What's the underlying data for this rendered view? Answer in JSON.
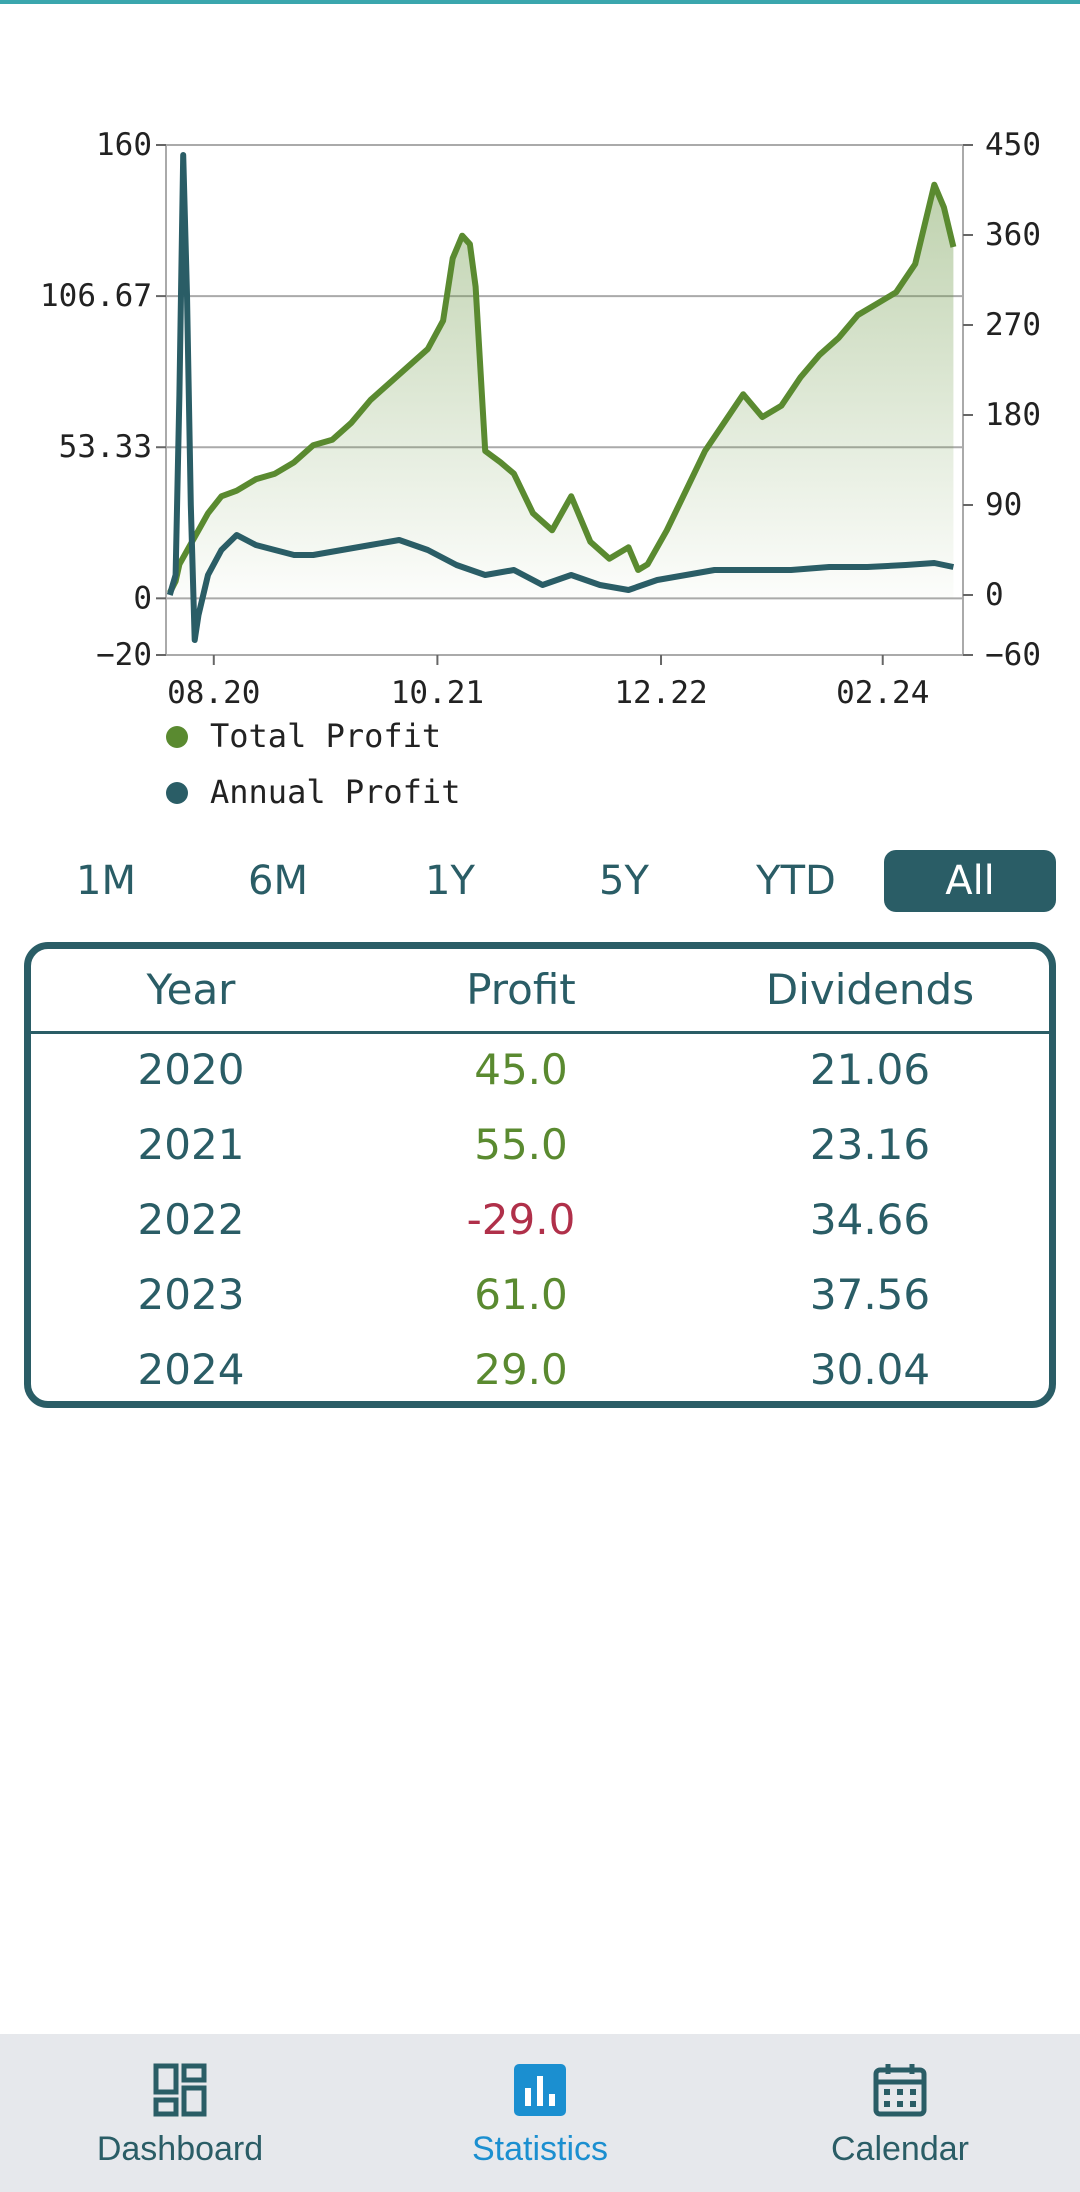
{
  "chart_data": {
    "type": "line",
    "series": [
      {
        "name": "Total Profit",
        "color": "#5a8a30",
        "axis": "left",
        "x": [
          2020.35,
          2020.38,
          2020.4,
          2020.45,
          2020.5,
          2020.55,
          2020.62,
          2020.7,
          2020.8,
          2020.9,
          2021.0,
          2021.1,
          2021.2,
          2021.3,
          2021.4,
          2021.5,
          2021.6,
          2021.7,
          2021.78,
          2021.83,
          2021.88,
          2021.92,
          2021.95,
          2022.0,
          2022.08,
          2022.15,
          2022.25,
          2022.35,
          2022.45,
          2022.55,
          2022.65,
          2022.75,
          2022.8,
          2022.85,
          2022.95,
          2023.05,
          2023.15,
          2023.25,
          2023.35,
          2023.45,
          2023.55,
          2023.65,
          2023.75,
          2023.85,
          2023.95,
          2024.05,
          2024.15,
          2024.25,
          2024.35,
          2024.4,
          2024.45
        ],
        "y": [
          2,
          6,
          12,
          18,
          24,
          30,
          36,
          38,
          42,
          44,
          48,
          54,
          56,
          62,
          70,
          76,
          82,
          88,
          98,
          120,
          128,
          125,
          110,
          52,
          48,
          44,
          30,
          24,
          36,
          20,
          14,
          18,
          10,
          12,
          24,
          38,
          52,
          62,
          72,
          64,
          68,
          78,
          86,
          92,
          100,
          104,
          108,
          118,
          146,
          138,
          124
        ]
      },
      {
        "name": "Annual Profit",
        "color": "#2a5d66",
        "axis": "right",
        "x": [
          2020.35,
          2020.38,
          2020.4,
          2020.42,
          2020.44,
          2020.46,
          2020.48,
          2020.5,
          2020.55,
          2020.62,
          2020.7,
          2020.8,
          2020.9,
          2021.0,
          2021.1,
          2021.25,
          2021.4,
          2021.55,
          2021.7,
          2021.85,
          2022.0,
          2022.15,
          2022.3,
          2022.45,
          2022.6,
          2022.75,
          2022.9,
          2023.05,
          2023.2,
          2023.4,
          2023.6,
          2023.8,
          2024.0,
          2024.2,
          2024.35,
          2024.45
        ],
        "y": [
          0,
          20,
          200,
          440,
          300,
          90,
          -45,
          -20,
          20,
          45,
          60,
          50,
          45,
          40,
          40,
          45,
          50,
          55,
          45,
          30,
          20,
          25,
          10,
          20,
          10,
          5,
          15,
          20,
          25,
          25,
          25,
          28,
          28,
          30,
          32,
          28
        ]
      }
    ],
    "xlabel": "",
    "ylabel": "",
    "x_ticks": [
      "08.20",
      "10.21",
      "12.22",
      "02.24"
    ],
    "x_tick_positions": [
      2020.58,
      2021.75,
      2022.92,
      2024.08
    ],
    "xlim": [
      2020.33,
      2024.5
    ],
    "y_left_ticks": [
      "160",
      "106.67",
      "53.33",
      "0",
      "−20"
    ],
    "y_left_values": [
      160,
      106.67,
      53.33,
      0,
      -20
    ],
    "ylim_left": [
      -20,
      160
    ],
    "y_right_ticks": [
      "450",
      "360",
      "270",
      "180",
      "90",
      "0",
      "−60"
    ],
    "y_right_values": [
      450,
      360,
      270,
      180,
      90,
      0,
      -60
    ],
    "ylim_right": [
      -60,
      450
    ],
    "grid": true,
    "legend": "bottom-left"
  },
  "range": {
    "options": [
      "1M",
      "6M",
      "1Y",
      "5Y",
      "YTD",
      "All"
    ],
    "selected": "All"
  },
  "table": {
    "headers": {
      "year": "Year",
      "profit": "Profit",
      "dividends": "Dividends"
    },
    "rows": [
      {
        "year": "2020",
        "profit": "45.0",
        "dividends": "21.06",
        "sign": "pos"
      },
      {
        "year": "2021",
        "profit": "55.0",
        "dividends": "23.16",
        "sign": "pos"
      },
      {
        "year": "2022",
        "profit": "-29.0",
        "dividends": "34.66",
        "sign": "neg"
      },
      {
        "year": "2023",
        "profit": "61.0",
        "dividends": "37.56",
        "sign": "pos"
      },
      {
        "year": "2024",
        "profit": "29.0",
        "dividends": "30.04",
        "sign": "pos"
      }
    ]
  },
  "nav": {
    "items": [
      {
        "label": "Dashboard",
        "icon": "dashboard-icon"
      },
      {
        "label": "Statistics",
        "icon": "bar-chart-icon",
        "active": true
      },
      {
        "label": "Calendar",
        "icon": "calendar-icon"
      }
    ]
  },
  "colors": {
    "accent": "#2a5d66",
    "positive": "#5a8a30",
    "negative": "#b0304a",
    "active_nav": "#1b8fd0"
  }
}
